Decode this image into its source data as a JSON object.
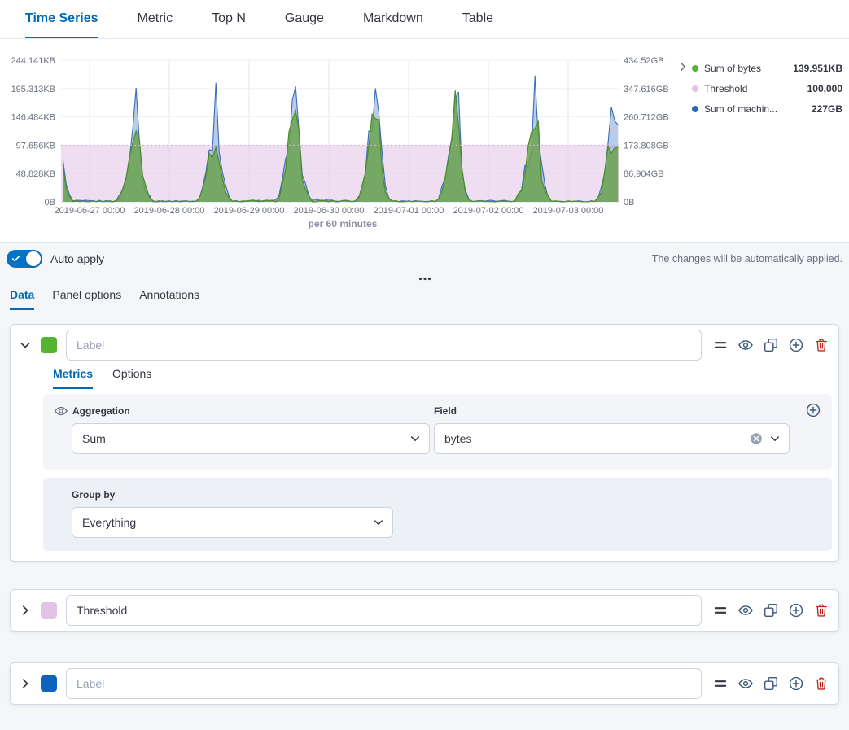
{
  "colors": {
    "accent": "#006BB4",
    "danger": "#BD271E",
    "panel_bg": "#F4F6F9",
    "toggle_on": "#0073C9"
  },
  "top_tabs": [
    {
      "label": "Time Series",
      "active": true
    },
    {
      "label": "Metric",
      "active": false
    },
    {
      "label": "Top N",
      "active": false
    },
    {
      "label": "Gauge",
      "active": false
    },
    {
      "label": "Markdown",
      "active": false
    },
    {
      "label": "Table",
      "active": false
    }
  ],
  "chart": {
    "legend": [
      {
        "label": "Sum of bytes",
        "value": "139.951KB",
        "color": "#54B32F"
      },
      {
        "label": "Threshold",
        "value": "100,000",
        "color": "#E2C3E6"
      },
      {
        "label": "Sum of machin...",
        "value": "227GB",
        "color": "#2B6CB0"
      }
    ]
  },
  "chart_data": {
    "type": "area",
    "interval_caption": "per 60 minutes",
    "x_ticks": [
      "2019-06-27 00:00",
      "2019-06-28 00:00",
      "2019-06-29 00:00",
      "2019-06-30 00:00",
      "2019-07-01 00:00",
      "2019-07-02 00:00",
      "2019-07-03 00:00"
    ],
    "time_span_hours": [
      -8,
      159
    ],
    "left_axis": {
      "unit": "KB",
      "max": 244.141,
      "tick_values": [
        0,
        48.828,
        97.656,
        146.484,
        195.313,
        244.141
      ],
      "labels": [
        "0B",
        "48.828KB",
        "97.656KB",
        "146.484KB",
        "195.313KB",
        "244.141KB"
      ]
    },
    "right_axis": {
      "unit": "GB",
      "max": 434.52,
      "tick_values": [
        0,
        86.904,
        173.808,
        260.712,
        347.616,
        434.52
      ],
      "labels": [
        "0B",
        "86.904GB",
        "173.808GB",
        "260.712GB",
        "347.616GB",
        "434.52GB"
      ]
    },
    "threshold": {
      "name": "Threshold",
      "value": 100000,
      "display": "100,000",
      "axis": "left",
      "kb_level": 97.656,
      "color": "#E2C3E6"
    },
    "series": [
      {
        "name": "Sum of bytes",
        "axis": "left",
        "unit": "KB",
        "color": "#54B32F",
        "current": "139.951KB",
        "day_peaks": [
          150,
          140,
          195,
          165,
          150,
          170,
          155
        ]
      },
      {
        "name": "Sum of machine.ram",
        "axis": "right",
        "unit": "GB",
        "color": "#2B6CB0",
        "current": "227GB",
        "day_peaks": [
          330,
          280,
          430,
          360,
          300,
          340,
          300
        ]
      }
    ],
    "daily_shape": {
      "peak_hour": 13.5,
      "base_sigma": 2.8,
      "spike_sigma": 1.1,
      "spike_weight": 0.6
    }
  },
  "auto_apply": {
    "label": "Auto apply",
    "hint": "The changes will be automatically applied.",
    "enabled": true
  },
  "editor_tabs": [
    {
      "label": "Data",
      "active": true
    },
    {
      "label": "Panel options",
      "active": false
    },
    {
      "label": "Annotations",
      "active": false
    }
  ],
  "series": [
    {
      "color": "#54B32F",
      "label_value": "",
      "label_placeholder": "Label",
      "expanded": true,
      "tabs": [
        {
          "label": "Metrics",
          "active": true
        },
        {
          "label": "Options",
          "active": false
        }
      ],
      "aggregation": {
        "label": "Aggregation",
        "value": "Sum"
      },
      "field": {
        "label": "Field",
        "value": "bytes"
      },
      "group_by": {
        "label": "Group by",
        "value": "Everything"
      }
    },
    {
      "color": "#E2C3E6",
      "label_value": "Threshold",
      "label_placeholder": "Label",
      "expanded": false
    },
    {
      "color": "#0F63BE",
      "label_value": "",
      "label_placeholder": "Label",
      "expanded": false
    }
  ],
  "icons": {
    "series_expand": "chevron-down",
    "series_collapsed": "chevron-right",
    "header_actions": [
      "drag-handle",
      "eye",
      "clone",
      "add",
      "delete"
    ],
    "legend_collapse": "chevron-right",
    "field_clear": "cross-in-circle",
    "select_caret": "chevron-down",
    "panel_add": "plus-in-circle",
    "panel_eye": "eye",
    "more": "ellipsis-horizontal",
    "auto_apply_check": "check"
  }
}
